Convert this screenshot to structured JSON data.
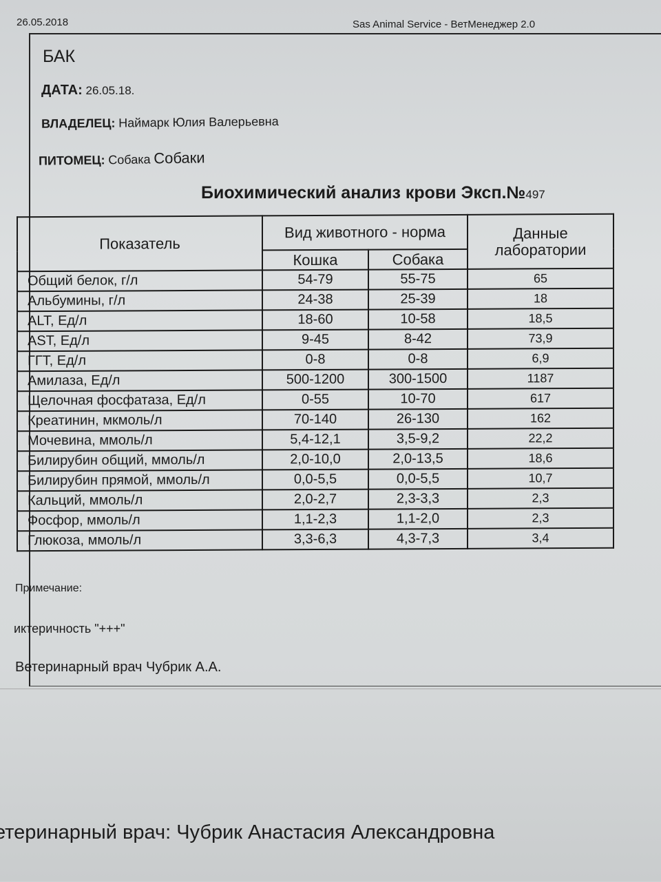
{
  "header": {
    "date": "26.05.2018",
    "app": "Sas Animal Service - ВетМенеджер 2.0"
  },
  "doc": {
    "type": "БАК",
    "date_label": "ДАТА:",
    "date_value": "26.05.18.",
    "owner_label": "ВЛАДЕЛЕЦ:",
    "owner_value": "Наймарк Юлия Валерьевна",
    "pet_label": "ПИТОМЕЦ:",
    "pet_value": "Собака",
    "pet_name": "Собаки",
    "title": "Биохимический анализ крови Эксп.№",
    "title_num": "497"
  },
  "table": {
    "headers": {
      "indicator": "Показатель",
      "norm": "Вид животного - норма",
      "cat": "Кошка",
      "dog": "Собака",
      "lab": "Данные лаборатории"
    },
    "rows": [
      {
        "name": "Общий белок, г/л",
        "cat": "54-79",
        "dog": "55-75",
        "lab": "65"
      },
      {
        "name": "Альбумины, г/л",
        "cat": "24-38",
        "dog": "25-39",
        "lab": "18"
      },
      {
        "name": "ALT, Ед/л",
        "cat": "18-60",
        "dog": "10-58",
        "lab": "18,5"
      },
      {
        "name": "AST, Ед/л",
        "cat": "9-45",
        "dog": "8-42",
        "lab": "73,9"
      },
      {
        "name": "ГГТ, Ед/л",
        "cat": "0-8",
        "dog": "0-8",
        "lab": "6,9"
      },
      {
        "name": "Амилаза, Ед/л",
        "cat": "500-1200",
        "dog": "300-1500",
        "lab": "1187"
      },
      {
        "name": "Щелочная фосфатаза, Ед/л",
        "cat": "0-55",
        "dog": "10-70",
        "lab": "617"
      },
      {
        "name": "Креатинин, мкмоль/л",
        "cat": "70-140",
        "dog": "26-130",
        "lab": "162"
      },
      {
        "name": "Мочевина, ммоль/л",
        "cat": "5,4-12,1",
        "dog": "3,5-9,2",
        "lab": "22,2"
      },
      {
        "name": "Билирубин общий, ммоль/л",
        "cat": "2,0-10,0",
        "dog": "2,0-13,5",
        "lab": "18,6"
      },
      {
        "name": "Билирубин прямой, ммоль/л",
        "cat": "0,0-5,5",
        "dog": "0,0-5,5",
        "lab": "10,7"
      },
      {
        "name": "Кальций, ммоль/л",
        "cat": "2,0-2,7",
        "dog": "2,3-3,3",
        "lab": "2,3"
      },
      {
        "name": "Фосфор, ммоль/л",
        "cat": "1,1-2,3",
        "dog": "1,1-2,0",
        "lab": "2,3"
      },
      {
        "name": "Глюкоза, ммоль/л",
        "cat": "3,3-6,3",
        "dog": "4,3-7,3",
        "lab": "3,4"
      }
    ]
  },
  "note": {
    "label": "Примечание:",
    "text": "иктеричность \"+++\""
  },
  "vet_short": "Ветеринарный врач Чубрик А.А.",
  "vet_full": "етеринарный врач: Чубрик Анастасия Александровна"
}
